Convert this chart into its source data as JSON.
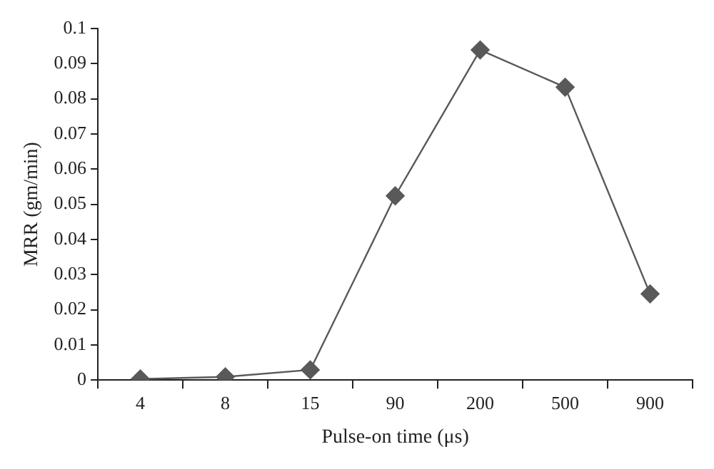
{
  "chart_data": {
    "type": "line",
    "xlabel": "Pulse-on time (μs)",
    "ylabel": "MRR (gm/min)",
    "categories": [
      "4",
      "8",
      "15",
      "90",
      "200",
      "500",
      "900"
    ],
    "series": [
      {
        "color": "#595959",
        "values": [
          0.0003,
          0.0009,
          0.0029,
          0.0524,
          0.0939,
          0.0833,
          0.0245
        ]
      }
    ],
    "ylim": [
      0,
      0.1
    ],
    "yticks": [
      0,
      0.01,
      0.02,
      0.03,
      0.04,
      0.05,
      0.06,
      0.07,
      0.08,
      0.09,
      0.1
    ],
    "grid": false,
    "legend": false,
    "marker": "diamond",
    "line_style": "solid"
  }
}
